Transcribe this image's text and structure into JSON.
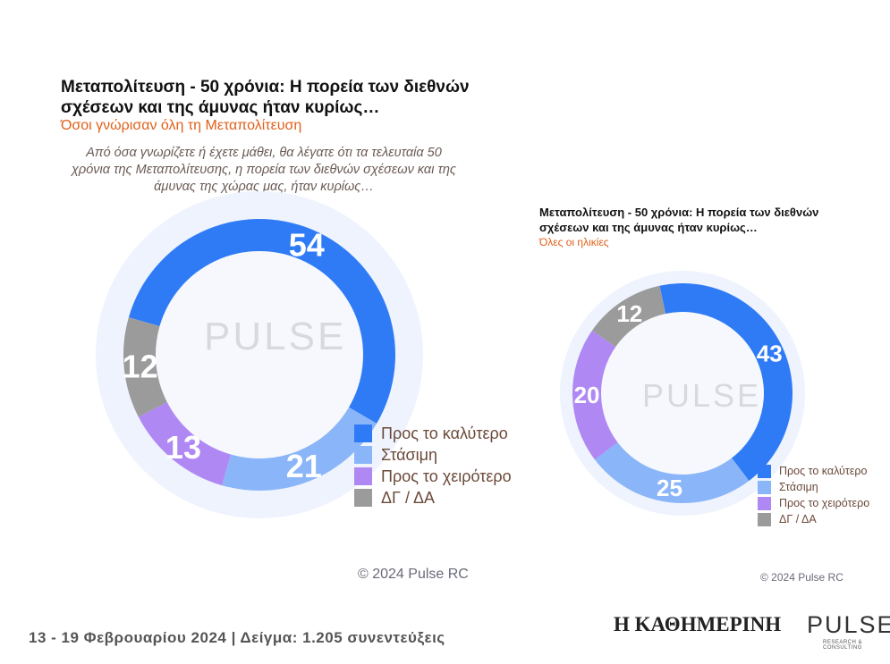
{
  "left": {
    "title": "Μεταπολίτευση - 50 χρόνια: Η πορεία των διεθνών σχέσεων και της άμυνας ήταν κυρίως…",
    "subtitle": "Όσοι γνώρισαν όλη τη Μεταπολίτευση",
    "question": "Από όσα γνωρίζετε ή έχετε μάθει, θα λέγατε ότι τα τελευταία 50 χρόνια της Μεταπολίτευσης, η πορεία των διεθνών σχέσεων και της άμυνας της χώρας μας, ήταν κυρίως…",
    "copyright": "© 2024 Pulse RC"
  },
  "right": {
    "title": "Μεταπολίτευση - 50 χρόνια: Η πορεία των διεθνών σχέσεων και της άμυνας ήταν κυρίως…",
    "subtitle": "Όλες οι ηλικίες",
    "copyright": "© 2024 Pulse RC"
  },
  "watermark": {
    "name": "PULSE",
    "sub": "RESEARCH & CONSULTING"
  },
  "footer": {
    "text": "13 - 19 Φεβρουαρίου 2024 | Δείγμα: 1.205 συνεντεύξεις",
    "brand1": "Η ΚΑΘΗΜΕΡΙΝΗ",
    "brand2": "PULSE",
    "brand2_sub": "RESEARCH & CONSULTING"
  },
  "chart_data": [
    {
      "type": "pie",
      "title": "Όσοι γνώρισαν όλη τη Μεταπολίτευση",
      "categories": [
        "Προς το καλύτερο",
        "Στάσιμη",
        "Προς το χειρότερο",
        "ΔΓ / ΔΑ"
      ],
      "values": [
        54,
        21,
        13,
        12
      ],
      "colors": [
        "#2f7bf6",
        "#8ab6f9",
        "#b088f4",
        "#9b9b9b"
      ]
    },
    {
      "type": "pie",
      "title": "Όλες οι ηλικίες",
      "categories": [
        "Προς το καλύτερο",
        "Στάσιμη",
        "Προς το χειρότερο",
        "ΔΓ / ΔΑ"
      ],
      "values": [
        43,
        25,
        20,
        12
      ],
      "colors": [
        "#2f7bf6",
        "#8ab6f9",
        "#b088f4",
        "#9b9b9b"
      ]
    }
  ]
}
